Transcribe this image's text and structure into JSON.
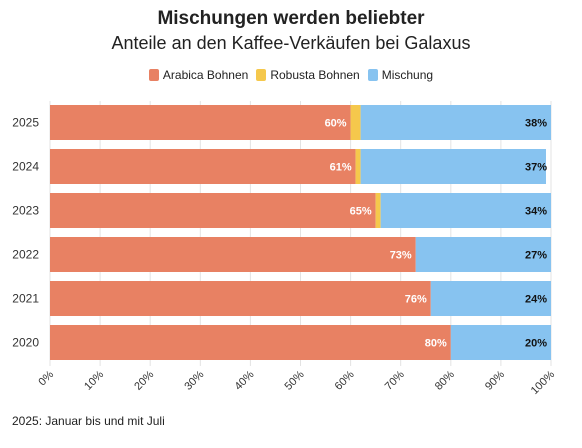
{
  "chart_data": {
    "type": "bar",
    "orientation": "horizontal",
    "stacked": true,
    "title": "Mischungen werden beliebter",
    "subtitle": "Anteile an den Kaffee-Verkäufen bei Galaxus",
    "categories": [
      "2025",
      "2024",
      "2023",
      "2022",
      "2021",
      "2020"
    ],
    "series": [
      {
        "name": "Arabica Bohnen",
        "color": "#e88163",
        "values": [
          60,
          61,
          65,
          73,
          76,
          80
        ],
        "labels": [
          "60%",
          "61%",
          "65%",
          "73%",
          "76%",
          "80%"
        ]
      },
      {
        "name": "Robusta Bohnen",
        "color": "#f5c84c",
        "values": [
          2,
          1,
          1,
          0,
          0,
          0
        ]
      },
      {
        "name": "Mischung",
        "color": "#87c3f0",
        "values": [
          38,
          37,
          34,
          27,
          24,
          20
        ],
        "labels": [
          "38%",
          "37%",
          "34%",
          "27%",
          "24%",
          "20%"
        ]
      }
    ],
    "xlim": [
      0,
      100
    ],
    "xticks": [
      "0%",
      "10%",
      "20%",
      "30%",
      "40%",
      "50%",
      "60%",
      "70%",
      "80%",
      "90%",
      "100%"
    ],
    "legend_position": "top-center",
    "grid": true
  },
  "footnote": "2025: Januar bis und mit Juli"
}
